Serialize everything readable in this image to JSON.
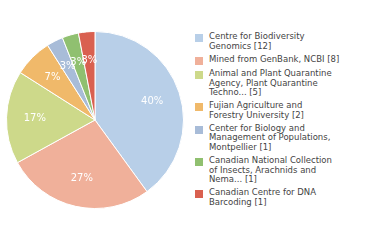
{
  "chart_data": {
    "type": "pie",
    "categories": [
      "Centre for Biodiversity\nGenomics [12]",
      "Mined from GenBank, NCBI [8]",
      "Animal and Plant Quarantine\nAgency, Plant Quarantine\nTechno... [5]",
      "Fujian Agriculture and\nForestry University [2]",
      "Center for Biology and\nManagement of Populations,\nMontpellier [1]",
      "Canadian National Collection\nof Insects, Arachnids and\nNema... [1]",
      "Canadian Centre for DNA\nBarcoding [1]"
    ],
    "values": [
      40,
      27,
      17,
      7,
      3,
      3,
      3
    ],
    "value_labels": [
      "40%",
      "27%",
      "17%",
      "7%",
      "3%",
      "3%",
      "3%"
    ],
    "colors": [
      "#b8cfe8",
      "#f0b09a",
      "#cdd98a",
      "#f0b96a",
      "#a8bcd8",
      "#90c070",
      "#d96050"
    ],
    "data_labels": true,
    "legend": "right"
  }
}
